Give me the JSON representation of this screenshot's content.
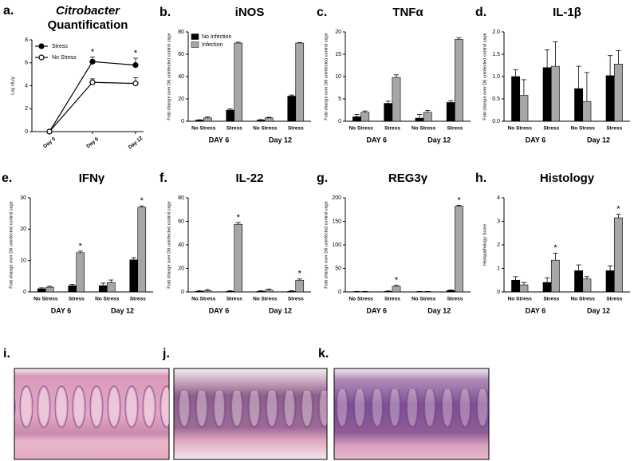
{
  "chart_data": [
    {
      "type": "line",
      "label": "a.",
      "organism": "Citrobacter",
      "title": "Quantification",
      "ylabel": "Log cfu/g",
      "categories": [
        "Day 0",
        "Day 6",
        "Day 12"
      ],
      "series": [
        {
          "name": "Stress",
          "color": "#000000",
          "values": [
            0,
            6.1,
            5.8
          ],
          "errors": [
            0,
            0.4,
            0.6
          ],
          "significance": [
            null,
            "*",
            "*"
          ]
        },
        {
          "name": "No Stress",
          "color": "#000000",
          "values": [
            0,
            4.3,
            4.2
          ],
          "errors": [
            0,
            0.3,
            0.5
          ]
        }
      ],
      "ylim": [
        0,
        8
      ],
      "yticks": [
        0,
        2,
        4,
        6,
        8
      ]
    },
    {
      "type": "bar",
      "label": "b.",
      "title": "iNOS",
      "ylabel": "Fold change over D6 uninfected control cage",
      "groups": [
        "DAY 6",
        "Day 12"
      ],
      "categories": [
        "No Stress",
        "Stress",
        "No Stress",
        "Stress"
      ],
      "series": [
        {
          "name": "No Infection",
          "color": "#000000",
          "values": [
            1,
            10,
            1,
            22.5
          ],
          "errors": [
            0.3,
            1,
            0.5,
            1
          ]
        },
        {
          "name": "Infection",
          "color": "#a6a6a6",
          "values": [
            3,
            70,
            3,
            70
          ],
          "errors": [
            0.8,
            0.8,
            0.5,
            0.5
          ]
        }
      ],
      "ylim": [
        0,
        80
      ],
      "yticks": [
        0,
        20,
        40,
        60,
        80
      ],
      "legend": "upper-left"
    },
    {
      "type": "bar",
      "label": "c.",
      "title": "TNFα",
      "ylabel": "Fold change over D6 uninfected control cage",
      "groups": [
        "DAY 6",
        "Day 12"
      ],
      "categories": [
        "No Stress",
        "Stress",
        "No Stress",
        "Stress"
      ],
      "series": [
        {
          "color": "#000000",
          "values": [
            1,
            4,
            0.7,
            4.2
          ],
          "errors": [
            0.5,
            0.5,
            0.8,
            0.4
          ]
        },
        {
          "color": "#a6a6a6",
          "values": [
            2,
            9.8,
            2,
            18.3
          ],
          "errors": [
            0.3,
            0.6,
            0.4,
            0.4
          ]
        }
      ],
      "ylim": [
        0,
        20
      ],
      "yticks": [
        0,
        5,
        10,
        15,
        20
      ]
    },
    {
      "type": "bar",
      "label": "d.",
      "title": "IL-1β",
      "ylabel": "Fold change over D6 uninfected control cage",
      "groups": [
        "DAY 6",
        "Day 12"
      ],
      "categories": [
        "No Stress",
        "Stress",
        "No Stress",
        "Stress"
      ],
      "series": [
        {
          "color": "#000000",
          "values": [
            1.0,
            1.2,
            0.73,
            1.02
          ],
          "errors": [
            0.15,
            0.4,
            0.5,
            0.45
          ]
        },
        {
          "color": "#a6a6a6",
          "values": [
            0.58,
            1.23,
            0.44,
            1.28
          ],
          "errors": [
            0.35,
            0.55,
            0.65,
            0.3
          ]
        }
      ],
      "ylim": [
        0,
        2
      ],
      "yticks": [
        {
          "value": 0,
          "label": "0.0"
        },
        0.5,
        {
          "value": 1,
          "label": "1.0"
        },
        1.5,
        {
          "value": 2,
          "label": "2.0"
        }
      ]
    },
    {
      "type": "bar",
      "label": "e.",
      "title": "IFNγ",
      "ylabel": "Fold change over D6 uninfected control cage",
      "groups": [
        "DAY 6",
        "Day 12"
      ],
      "categories": [
        "No Stress",
        "Stress",
        "No Stress",
        "Stress"
      ],
      "series": [
        {
          "color": "#000000",
          "values": [
            1,
            2,
            2,
            10.2
          ],
          "errors": [
            0.3,
            0.4,
            0.8,
            0.7
          ]
        },
        {
          "color": "#a6a6a6",
          "values": [
            1.5,
            12.5,
            3,
            27
          ],
          "errors": [
            0.3,
            0.5,
            0.8,
            0.4
          ],
          "significance": [
            null,
            "*",
            null,
            "*"
          ]
        }
      ],
      "ylim": [
        0,
        30
      ],
      "yticks": [
        0,
        10,
        20,
        30
      ]
    },
    {
      "type": "bar",
      "label": "f.",
      "title": "IL-22",
      "ylabel": "Fold change over D6 uninfected control cage",
      "groups": [
        "DAY 6",
        "Day 12"
      ],
      "categories": [
        "No Stress",
        "Stress",
        "No Stress",
        "Stress"
      ],
      "series": [
        {
          "color": "#000000",
          "values": [
            0.5,
            0.5,
            0.5,
            0.5
          ],
          "errors": [
            0.5,
            0.5,
            0.5,
            0.5
          ]
        },
        {
          "color": "#a6a6a6",
          "values": [
            1,
            57.5,
            1.5,
            10
          ],
          "errors": [
            1,
            1.5,
            1,
            1
          ],
          "significance": [
            null,
            "*",
            null,
            "*"
          ]
        }
      ],
      "ylim": [
        0,
        80
      ],
      "yticks": [
        0,
        20,
        40,
        60,
        80
      ]
    },
    {
      "type": "bar",
      "label": "g.",
      "title": "REG3γ",
      "ylabel": "Fold change over D6 uninfected control cage",
      "groups": [
        "DAY 6",
        "Day 12"
      ],
      "categories": [
        "No Stress",
        "Stress",
        "No Stress",
        "Stress"
      ],
      "series": [
        {
          "color": "#000000",
          "values": [
            0.5,
            1,
            0.5,
            3
          ],
          "errors": [
            0.5,
            1,
            0.5,
            1
          ]
        },
        {
          "color": "#a6a6a6",
          "values": [
            0.5,
            12,
            0.5,
            182
          ],
          "errors": [
            0.5,
            2,
            0.5,
            2
          ],
          "significance": [
            null,
            "*",
            null,
            "*"
          ]
        }
      ],
      "ylim": [
        0,
        200
      ],
      "yticks": [
        0,
        50,
        100,
        150,
        200
      ]
    },
    {
      "type": "bar",
      "label": "h.",
      "title": "Histology",
      "ylabel": "Histopathology Score",
      "groups": [
        "DAY 6",
        "Day 12"
      ],
      "categories": [
        "No Stress",
        "Stress",
        "No Stress",
        "Stress"
      ],
      "series": [
        {
          "color": "#000000",
          "values": [
            0.5,
            0.4,
            0.9,
            0.9
          ],
          "errors": [
            0.15,
            0.2,
            0.25,
            0.2
          ]
        },
        {
          "color": "#a6a6a6",
          "values": [
            0.3,
            1.35,
            0.55,
            3.15
          ],
          "errors": [
            0.1,
            0.3,
            0.1,
            0.15
          ],
          "significance": [
            null,
            "*",
            null,
            "*"
          ]
        }
      ],
      "ylim": [
        0,
        4
      ],
      "yticks": [
        0,
        1,
        2,
        3,
        4
      ]
    }
  ],
  "images": [
    {
      "label": "i."
    },
    {
      "label": "j."
    },
    {
      "label": "k."
    }
  ]
}
